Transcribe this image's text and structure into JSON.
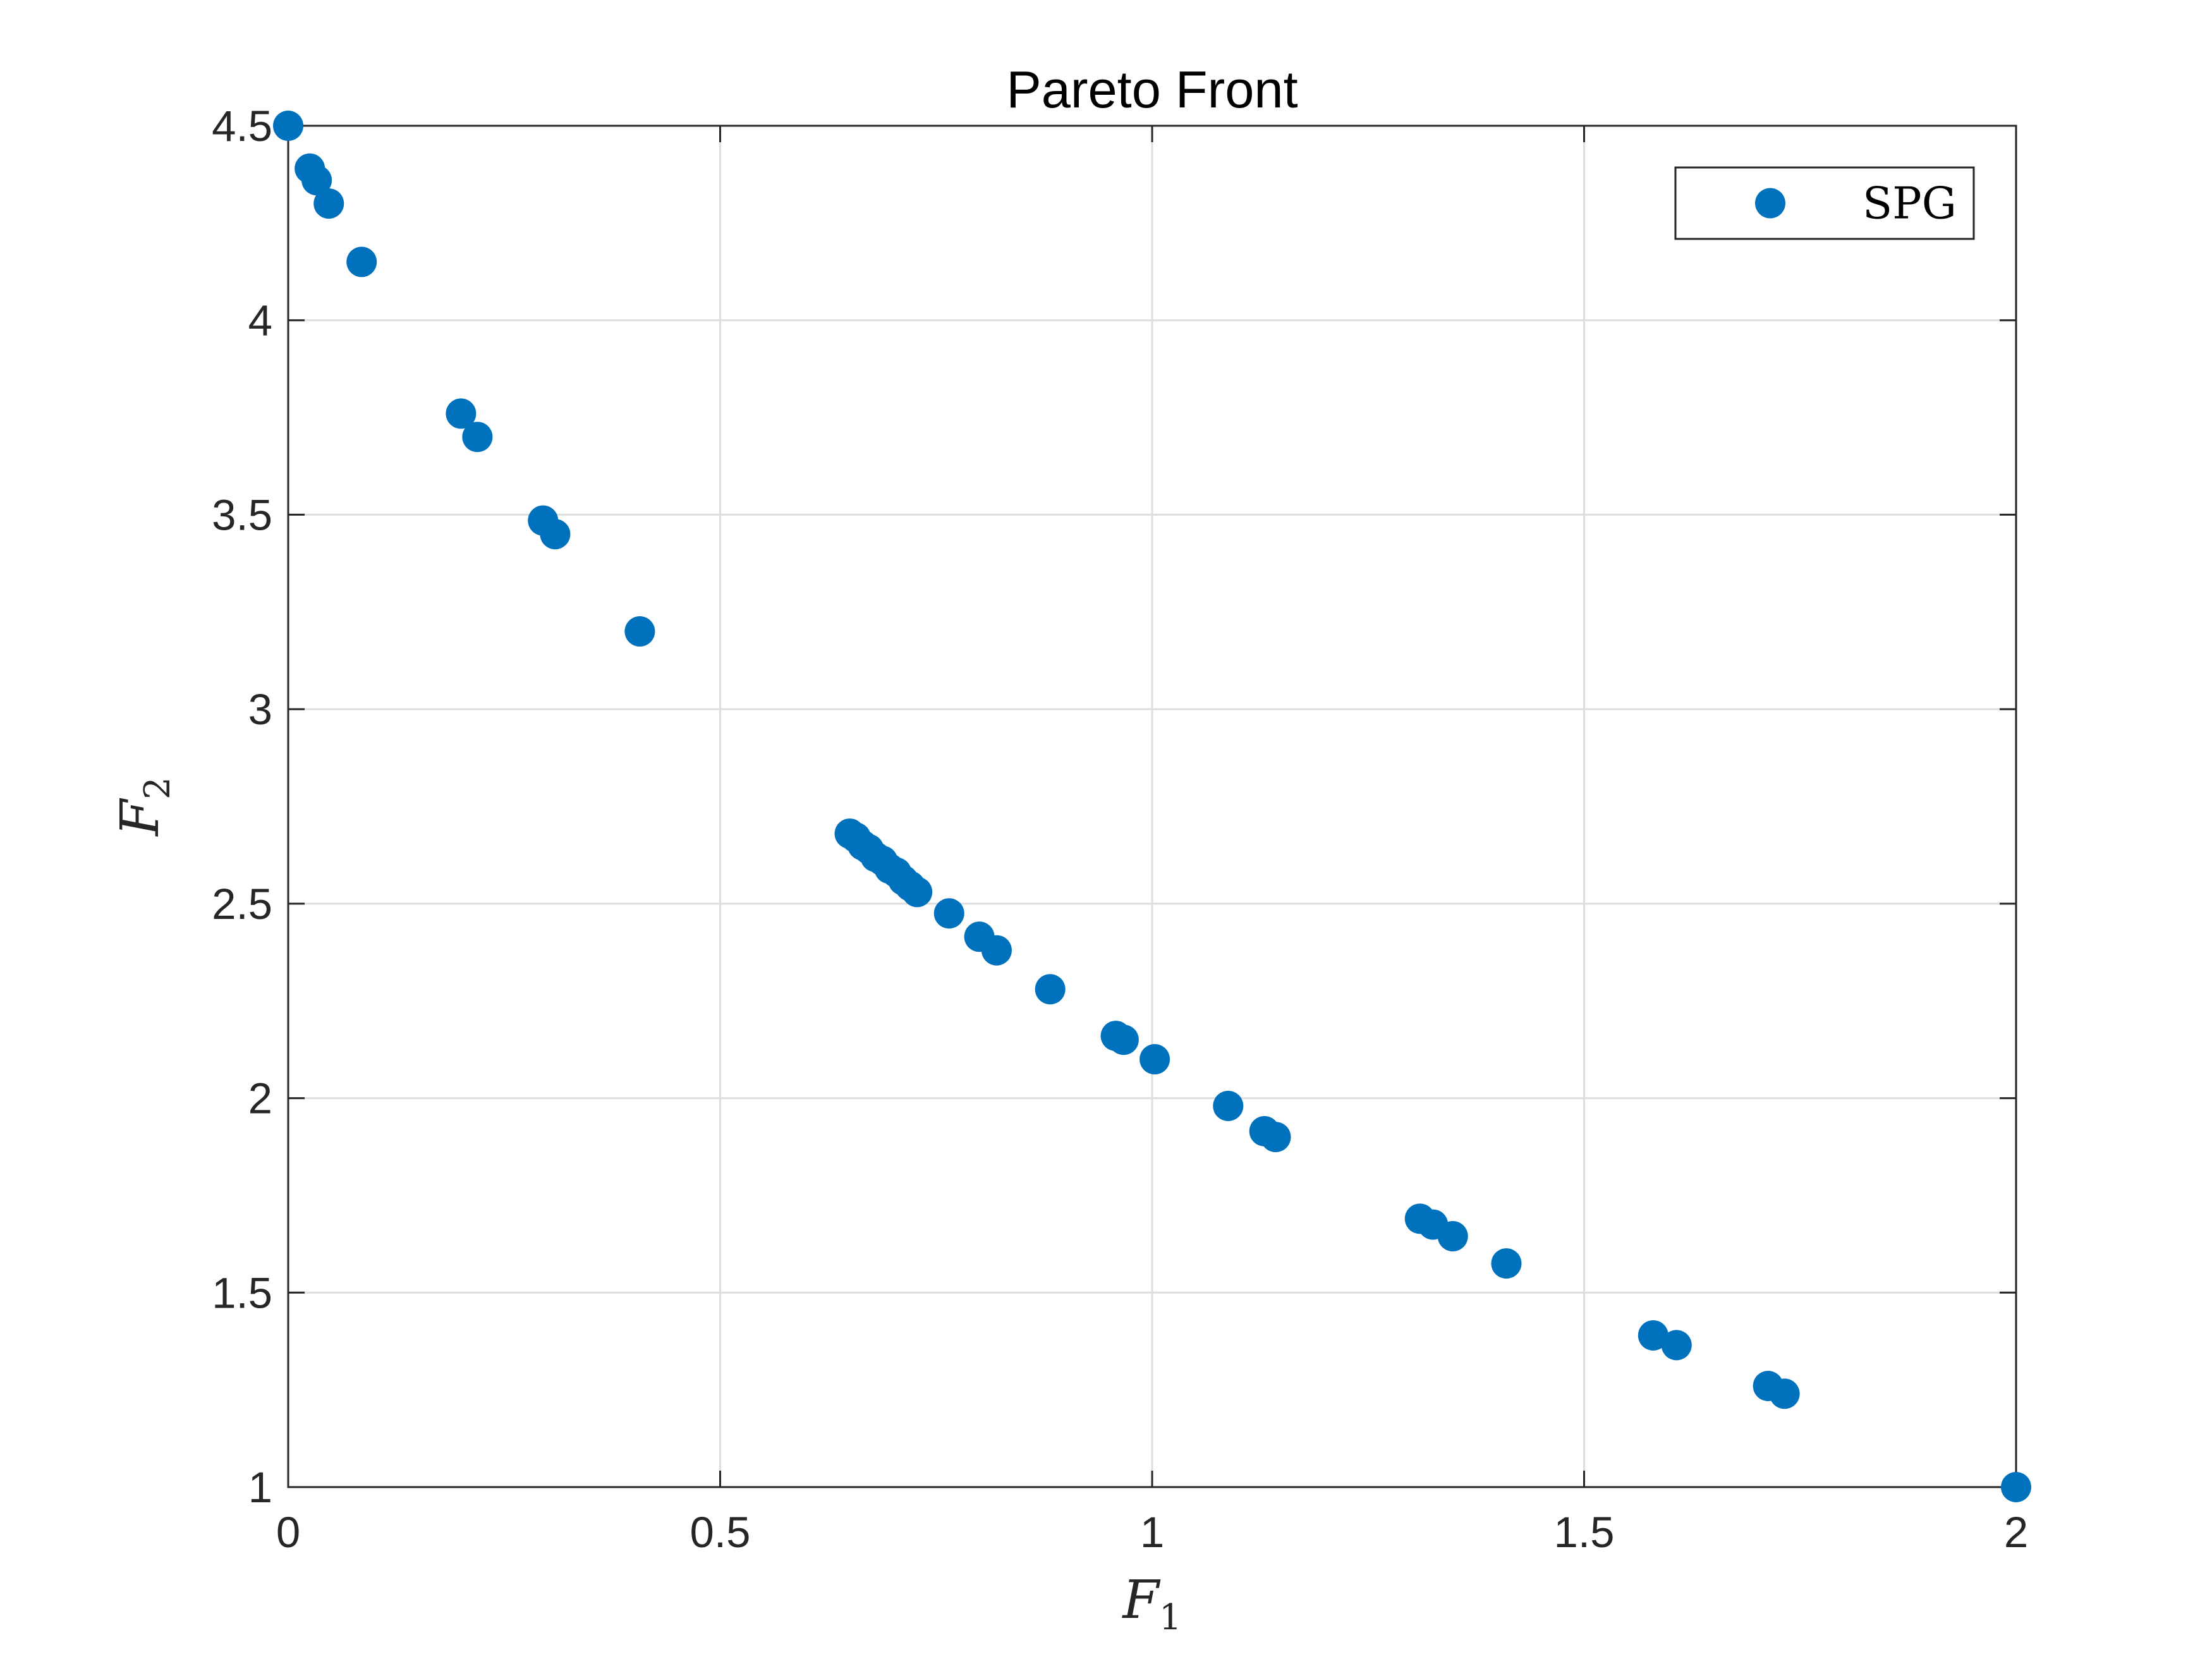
{
  "chart_data": {
    "type": "scatter",
    "title": "Pareto Front",
    "xlabel": {
      "base": "F",
      "sub": "1"
    },
    "ylabel": {
      "base": "F",
      "sub": "2"
    },
    "xlim": [
      0,
      2
    ],
    "ylim": [
      1,
      4.5
    ],
    "xticks": [
      0,
      0.5,
      1,
      1.5,
      2
    ],
    "xtick_labels": [
      "0",
      "0.5",
      "1",
      "1.5",
      "2"
    ],
    "yticks": [
      1,
      1.5,
      2,
      2.5,
      3,
      3.5,
      4,
      4.5
    ],
    "ytick_labels": [
      "1",
      "1.5",
      "2",
      "2.5",
      "3",
      "3.5",
      "4",
      "4.5"
    ],
    "grid": true,
    "legend": {
      "position": "top-right",
      "entries": [
        "SPG"
      ]
    },
    "series": [
      {
        "name": "SPG",
        "color": "#0072BD",
        "marker": "filled-circle",
        "x": [
          0,
          0.025,
          0.033,
          0.047,
          0.085,
          0.2,
          0.219,
          0.295,
          0.309,
          0.407,
          0.65,
          0.657,
          0.665,
          0.672,
          0.68,
          0.688,
          0.696,
          0.704,
          0.712,
          0.72,
          0.728,
          0.765,
          0.8,
          0.82,
          0.882,
          0.958,
          0.967,
          1.003,
          1.088,
          1.13,
          1.143,
          1.31,
          1.325,
          1.348,
          1.41,
          1.58,
          1.607,
          1.713,
          1.732,
          2.0
        ],
        "y": [
          4.5,
          4.39,
          4.36,
          4.3,
          4.15,
          3.76,
          3.7,
          3.485,
          3.45,
          3.2,
          2.68,
          2.67,
          2.65,
          2.64,
          2.62,
          2.61,
          2.59,
          2.58,
          2.56,
          2.545,
          2.53,
          2.475,
          2.415,
          2.38,
          2.28,
          2.16,
          2.15,
          2.1,
          1.98,
          1.915,
          1.9,
          1.69,
          1.675,
          1.645,
          1.575,
          1.39,
          1.365,
          1.26,
          1.24,
          1.0
        ]
      }
    ]
  }
}
